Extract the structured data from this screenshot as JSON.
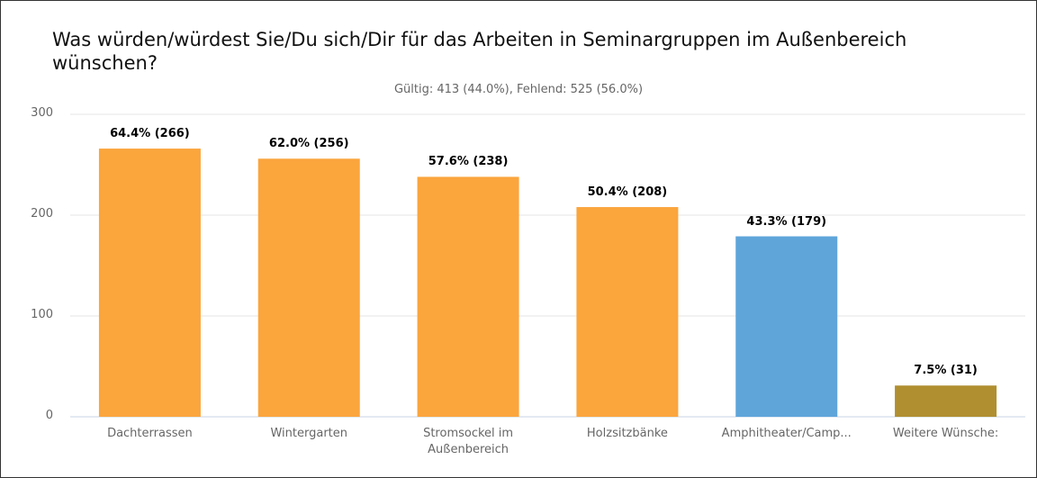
{
  "chart_data": {
    "type": "bar",
    "title": "Was würden/würdest Sie/Du sich/Dir für das Arbeiten in Seminargruppen im Außenbereich wünschen?",
    "subtitle": "Gültig: 413 (44.0%), Fehlend: 525 (56.0%)",
    "categories": [
      "Dachterrassen",
      "Wintergarten",
      "Stromsockel im Außenbereich",
      "Holzsitzbänke",
      "Amphitheater/Camp...",
      "Weitere Wünsche:"
    ],
    "values": [
      266,
      256,
      238,
      208,
      179,
      31
    ],
    "value_labels": [
      "64.4% (266)",
      "62.0% (256)",
      "57.6% (238)",
      "50.4% (208)",
      "43.3% (179)",
      "7.5% (31)"
    ],
    "colors": [
      "#fba53d",
      "#fba53d",
      "#fba53d",
      "#fba53d",
      "#5fa5da",
      "#b08f30"
    ],
    "ylim": [
      0,
      300
    ],
    "yticks": [
      0,
      100,
      200,
      300
    ],
    "grid": true
  }
}
